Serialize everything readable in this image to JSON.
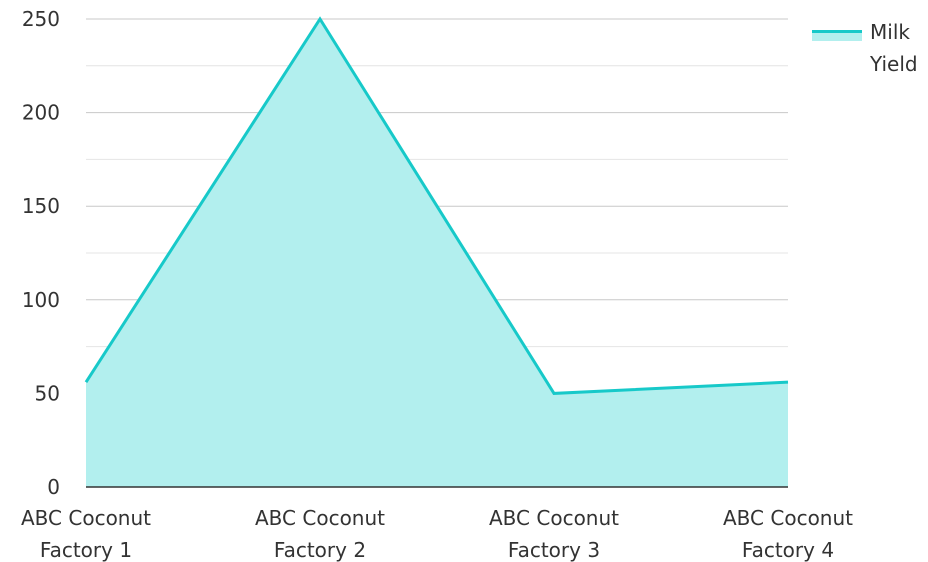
{
  "chart_data": {
    "type": "area",
    "categories": [
      [
        "ABC Coconut",
        "Factory 1"
      ],
      [
        "ABC Coconut",
        "Factory 2"
      ],
      [
        "ABC Coconut",
        "Factory 3"
      ],
      [
        "ABC Coconut",
        "Factory 4"
      ]
    ],
    "series": [
      {
        "name": "Milk Yield",
        "legend_lines": [
          "Milk",
          "Yield"
        ],
        "values": [
          56,
          250,
          50,
          56
        ]
      }
    ],
    "title": "",
    "xlabel": "",
    "ylabel": "",
    "ylim": [
      0,
      250
    ],
    "yticks": [
      "0",
      "50",
      "100",
      "150",
      "200",
      "250"
    ],
    "grid": true,
    "legend_position": "top-right",
    "colors": {
      "line": "#17c9c9",
      "fill": "#b2efee",
      "grid_major": "#c8c8c8",
      "grid_minor": "#e4e4e4",
      "axis": "#333333"
    }
  }
}
